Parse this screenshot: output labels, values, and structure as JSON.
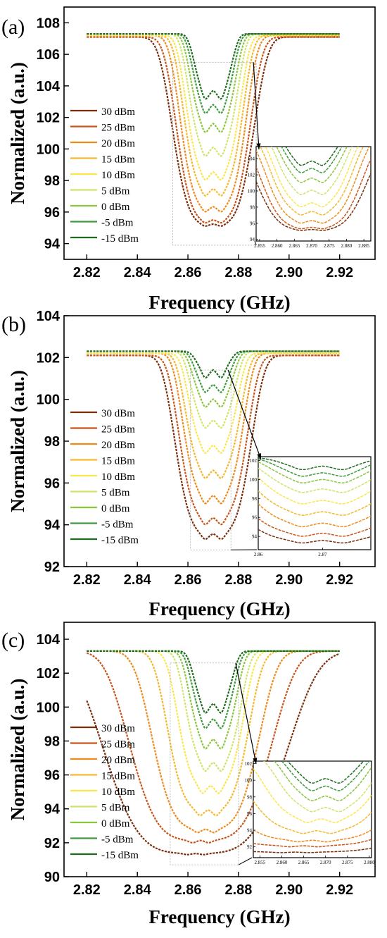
{
  "figure": {
    "legend_entries": [
      "30 dBm",
      "25 dBm",
      "20 dBm",
      "15 dBm",
      "10 dBm",
      "5 dBm",
      "0 dBm",
      "-5 dBm",
      "-15 dBm"
    ],
    "colors": [
      "#7a2e0b",
      "#c9541a",
      "#ef8a1c",
      "#f5b82c",
      "#fbe64c",
      "#cfe46a",
      "#8cc63f",
      "#3d9a3d",
      "#1e6b1e"
    ]
  },
  "chart_data": [
    {
      "type": "line",
      "panel_label": "(a)",
      "xlabel": "Frequency (GHz)",
      "ylabel": "Normalized (a.u.)",
      "xlim": [
        2.811,
        2.934
      ],
      "ylim": [
        93.0,
        109.0
      ],
      "xticks": [
        2.82,
        2.84,
        2.86,
        2.88,
        2.9,
        2.92
      ],
      "xtick_labels": [
        "2.82",
        "2.84",
        "2.86",
        "2.88",
        "2.90",
        "2.92"
      ],
      "yticks": [
        94,
        96,
        98,
        100,
        102,
        104,
        106,
        108
      ],
      "ytick_labels": [
        "94",
        "96",
        "98",
        "100",
        "102",
        "104",
        "106",
        "108"
      ],
      "series": [
        {
          "name": "30 dBm",
          "baseline": 107.1,
          "min": 95.1,
          "dip_halfwidth": 0.016,
          "split_depth": 0.2
        },
        {
          "name": "25 dBm",
          "baseline": 107.1,
          "min": 95.3,
          "dip_halfwidth": 0.0145,
          "split_depth": 0.3
        },
        {
          "name": "20 dBm",
          "baseline": 107.2,
          "min": 96.0,
          "dip_halfwidth": 0.013,
          "split_depth": 0.5
        },
        {
          "name": "15 dBm",
          "baseline": 107.2,
          "min": 97.0,
          "dip_halfwidth": 0.0118,
          "split_depth": 0.7
        },
        {
          "name": "10 dBm",
          "baseline": 107.2,
          "min": 98.0,
          "dip_halfwidth": 0.0108,
          "split_depth": 0.8
        },
        {
          "name": "5 dBm",
          "baseline": 107.3,
          "min": 99.5,
          "dip_halfwidth": 0.0098,
          "split_depth": 0.9
        },
        {
          "name": "0 dBm",
          "baseline": 107.3,
          "min": 101.0,
          "dip_halfwidth": 0.009,
          "split_depth": 0.9
        },
        {
          "name": "-5 dBm",
          "baseline": 107.3,
          "min": 102.2,
          "dip_halfwidth": 0.0082,
          "split_depth": 0.9
        },
        {
          "name": "-15 dBm",
          "baseline": 107.3,
          "min": 103.1,
          "dip_halfwidth": 0.0076,
          "split_depth": 0.9
        }
      ],
      "inset": {
        "xlim": [
          2.854,
          2.887
        ],
        "ylim": [
          93.8,
          105.5
        ],
        "xticks": [
          2.855,
          2.86,
          2.865,
          2.87,
          2.875,
          2.88,
          2.885
        ],
        "xtick_labels": [
          "2.855",
          "2.860",
          "2.865",
          "2.870",
          "2.875",
          "2.880",
          "2.885"
        ],
        "yticks": [
          94,
          96,
          98,
          100,
          102,
          104
        ],
        "ytick_labels": [
          "94",
          "96",
          "98",
          "100",
          "102",
          "104"
        ]
      }
    },
    {
      "type": "line",
      "panel_label": "(b)",
      "xlabel": "Frequency (GHz)",
      "ylabel": "Normalized (a.u.)",
      "xlim": [
        2.811,
        2.934
      ],
      "ylim": [
        92.0,
        104.0
      ],
      "xticks": [
        2.82,
        2.84,
        2.86,
        2.88,
        2.9,
        2.92
      ],
      "xtick_labels": [
        "2.82",
        "2.84",
        "2.86",
        "2.88",
        "2.90",
        "2.92"
      ],
      "yticks": [
        92,
        94,
        96,
        98,
        100,
        102,
        104
      ],
      "ytick_labels": [
        "92",
        "94",
        "96",
        "98",
        "100",
        "102",
        "104"
      ],
      "series": [
        {
          "name": "30 dBm",
          "baseline": 102.1,
          "min": 93.3,
          "dip_halfwidth": 0.015,
          "split_depth": 0.4
        },
        {
          "name": "25 dBm",
          "baseline": 102.1,
          "min": 94.0,
          "dip_halfwidth": 0.0135,
          "split_depth": 0.5
        },
        {
          "name": "20 dBm",
          "baseline": 102.2,
          "min": 95.0,
          "dip_halfwidth": 0.012,
          "split_depth": 0.6
        },
        {
          "name": "15 dBm",
          "baseline": 102.2,
          "min": 96.2,
          "dip_halfwidth": 0.011,
          "split_depth": 0.6
        },
        {
          "name": "10 dBm",
          "baseline": 102.2,
          "min": 97.4,
          "dip_halfwidth": 0.0098,
          "split_depth": 0.6
        },
        {
          "name": "5 dBm",
          "baseline": 102.3,
          "min": 98.6,
          "dip_halfwidth": 0.009,
          "split_depth": 0.6
        },
        {
          "name": "0 dBm",
          "baseline": 102.3,
          "min": 99.6,
          "dip_halfwidth": 0.0082,
          "split_depth": 0.6
        },
        {
          "name": "-5 dBm",
          "baseline": 102.3,
          "min": 100.3,
          "dip_halfwidth": 0.0075,
          "split_depth": 0.6
        },
        {
          "name": "-15 dBm",
          "baseline": 102.3,
          "min": 101.0,
          "dip_halfwidth": 0.007,
          "split_depth": 0.6
        }
      ],
      "inset": {
        "xlim": [
          2.86,
          2.8775
        ],
        "ylim": [
          92.6,
          102.4
        ],
        "xticks": [
          2.86,
          2.87
        ],
        "xtick_labels": [
          "2.86",
          "2.87"
        ],
        "yticks": [
          94,
          96,
          98,
          100,
          102
        ],
        "ytick_labels": [
          "94",
          "96",
          "98",
          "100",
          "102"
        ]
      }
    },
    {
      "type": "line",
      "panel_label": "(c)",
      "xlabel": "Frequency (GHz)",
      "ylabel": "Normalized (a.u.)",
      "xlim": [
        2.811,
        2.934
      ],
      "ylim": [
        90.0,
        105.0
      ],
      "xticks": [
        2.82,
        2.84,
        2.86,
        2.88,
        2.9,
        2.92
      ],
      "xtick_labels": [
        "2.82",
        "2.84",
        "2.86",
        "2.88",
        "2.90",
        "2.92"
      ],
      "yticks": [
        90,
        92,
        94,
        96,
        98,
        100,
        102,
        104
      ],
      "ytick_labels": [
        "90",
        "92",
        "94",
        "96",
        "98",
        "100",
        "102",
        "104"
      ],
      "series": [
        {
          "name": "30 dBm",
          "baseline": 103.3,
          "min": 91.3,
          "center": 2.863,
          "dip_halfwidth": 0.036,
          "split_depth": 0.1
        },
        {
          "name": "25 dBm",
          "baseline": 103.3,
          "min": 92.0,
          "center": 2.865,
          "dip_halfwidth": 0.028,
          "split_depth": 0.2
        },
        {
          "name": "20 dBm",
          "baseline": 103.3,
          "min": 92.6,
          "center": 2.867,
          "dip_halfwidth": 0.021,
          "split_depth": 0.3
        },
        {
          "name": "15 dBm",
          "baseline": 103.3,
          "min": 93.6,
          "center": 2.868,
          "dip_halfwidth": 0.016,
          "split_depth": 0.5
        },
        {
          "name": "10 dBm",
          "baseline": 103.3,
          "min": 94.9,
          "center": 2.869,
          "dip_halfwidth": 0.013,
          "split_depth": 0.7
        },
        {
          "name": "5 dBm",
          "baseline": 103.3,
          "min": 96.2,
          "center": 2.87,
          "dip_halfwidth": 0.011,
          "split_depth": 0.8
        },
        {
          "name": "0 dBm",
          "baseline": 103.3,
          "min": 97.5,
          "center": 2.87,
          "dip_halfwidth": 0.0095,
          "split_depth": 0.9
        },
        {
          "name": "-5 dBm",
          "baseline": 103.3,
          "min": 98.7,
          "center": 2.87,
          "dip_halfwidth": 0.0085,
          "split_depth": 0.9
        },
        {
          "name": "-15 dBm",
          "baseline": 103.3,
          "min": 99.6,
          "center": 2.87,
          "dip_halfwidth": 0.0078,
          "split_depth": 0.9
        }
      ],
      "inset": {
        "xlim": [
          2.8535,
          2.8805
        ],
        "ylim": [
          90.7,
          102.3
        ],
        "xticks": [
          2.855,
          2.86,
          2.865,
          2.87,
          2.875,
          2.88
        ],
        "xtick_labels": [
          "2.855",
          "2.860",
          "2.865",
          "2.870",
          "2.875",
          "2.880"
        ],
        "yticks": [
          92,
          94,
          96,
          98,
          100,
          102
        ],
        "ytick_labels": [
          "92",
          "94",
          "96",
          "98",
          "100",
          "102"
        ]
      }
    }
  ]
}
